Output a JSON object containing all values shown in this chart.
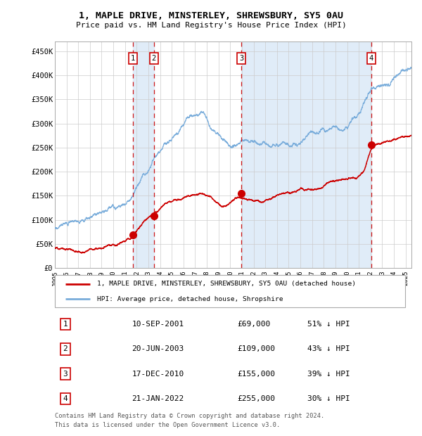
{
  "title1": "1, MAPLE DRIVE, MINSTERLEY, SHREWSBURY, SY5 0AU",
  "title2": "Price paid vs. HM Land Registry's House Price Index (HPI)",
  "ylim": [
    0,
    470000
  ],
  "xlim_start": 1995.0,
  "xlim_end": 2025.5,
  "yticks": [
    0,
    50000,
    100000,
    150000,
    200000,
    250000,
    300000,
    350000,
    400000,
    450000
  ],
  "ytick_labels": [
    "£0",
    "£50K",
    "£100K",
    "£150K",
    "£200K",
    "£250K",
    "£300K",
    "£350K",
    "£400K",
    "£450K"
  ],
  "xticks": [
    1995,
    1996,
    1997,
    1998,
    1999,
    2000,
    2001,
    2002,
    2003,
    2004,
    2005,
    2006,
    2007,
    2008,
    2009,
    2010,
    2011,
    2012,
    2013,
    2014,
    2015,
    2016,
    2017,
    2018,
    2019,
    2020,
    2021,
    2022,
    2023,
    2024,
    2025
  ],
  "sales": [
    {
      "num": 1,
      "date_num": 2001.69,
      "price": 69000,
      "label": "10-SEP-2001",
      "price_str": "£69,000",
      "hpi_pct": "51% ↓ HPI"
    },
    {
      "num": 2,
      "date_num": 2003.47,
      "price": 109000,
      "label": "20-JUN-2003",
      "price_str": "£109,000",
      "hpi_pct": "43% ↓ HPI"
    },
    {
      "num": 3,
      "date_num": 2010.96,
      "price": 155000,
      "label": "17-DEC-2010",
      "price_str": "£155,000",
      "hpi_pct": "39% ↓ HPI"
    },
    {
      "num": 4,
      "date_num": 2022.06,
      "price": 255000,
      "label": "21-JAN-2022",
      "price_str": "£255,000",
      "hpi_pct": "30% ↓ HPI"
    }
  ],
  "legend_line1": "1, MAPLE DRIVE, MINSTERLEY, SHREWSBURY, SY5 0AU (detached house)",
  "legend_line2": "HPI: Average price, detached house, Shropshire",
  "footnote1": "Contains HM Land Registry data © Crown copyright and database right 2024.",
  "footnote2": "This data is licensed under the Open Government Licence v3.0.",
  "red_color": "#cc0000",
  "blue_color": "#7aaddb",
  "band_color": "#e0ecf8",
  "grid_color": "#cccccc",
  "hpi_anchors_t": [
    1995.0,
    1996.0,
    1997.0,
    1998.0,
    1999.0,
    2000.0,
    2001.0,
    2001.5,
    2002.5,
    2003.5,
    2004.5,
    2005.5,
    2006.5,
    2007.3,
    2008.0,
    2008.8,
    2009.5,
    2010.5,
    2011.5,
    2012.5,
    2013.5,
    2014.5,
    2015.5,
    2016.5,
    2017.5,
    2018.2,
    2018.8,
    2019.5,
    2020.5,
    2021.5,
    2022.5,
    2023.5,
    2024.5,
    2025.3
  ],
  "hpi_anchors_v": [
    82000,
    87000,
    93000,
    101000,
    108000,
    120000,
    132000,
    145000,
    175000,
    205000,
    230000,
    248000,
    268000,
    283000,
    278000,
    255000,
    245000,
    242000,
    248000,
    250000,
    255000,
    265000,
    275000,
    283000,
    292000,
    298000,
    302000,
    308000,
    320000,
    358000,
    392000,
    385000,
    400000,
    415000
  ],
  "red_anchors_t": [
    1995.0,
    1996.0,
    1997.0,
    1998.0,
    1999.0,
    2000.0,
    2001.0,
    2001.69,
    2002.5,
    2003.47,
    2004.5,
    2005.5,
    2006.5,
    2007.5,
    2008.3,
    2009.0,
    2010.0,
    2010.96,
    2011.5,
    2012.5,
    2013.5,
    2014.5,
    2015.5,
    2016.5,
    2017.5,
    2018.5,
    2019.5,
    2020.5,
    2021.5,
    2022.06,
    2023.0,
    2024.0,
    2025.3
  ],
  "red_anchors_v": [
    42000,
    44000,
    46000,
    48000,
    51000,
    56000,
    62000,
    69000,
    88000,
    109000,
    128000,
    142000,
    152000,
    158000,
    150000,
    138000,
    145000,
    155000,
    152000,
    150000,
    155000,
    162000,
    168000,
    175000,
    182000,
    188000,
    192000,
    198000,
    220000,
    255000,
    268000,
    270000,
    275000
  ]
}
